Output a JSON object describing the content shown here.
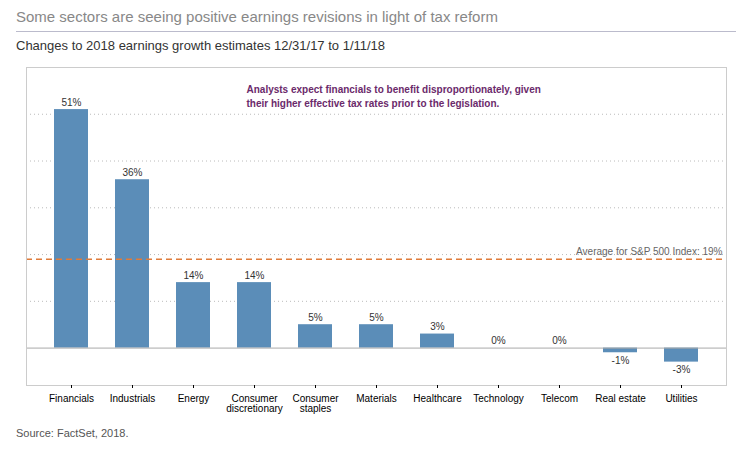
{
  "chart_data": {
    "type": "bar",
    "title": "Some sectors are seeing positive earnings revisions in light of tax reform",
    "subtitle": "Changes to 2018 earnings growth estimates 12/31/17 to 1/11/18",
    "categories": [
      "Financials",
      "Industrials",
      "Energy",
      "Consumer\ndiscretionary",
      "Consumer\nstaples",
      "Materials",
      "Healthcare",
      "Technology",
      "Telecom",
      "Real estate",
      "Utilities"
    ],
    "values": [
      51,
      36,
      14,
      14,
      5,
      5,
      3,
      0,
      0,
      -1,
      -3
    ],
    "value_labels": [
      "51%",
      "36%",
      "14%",
      "14%",
      "5%",
      "5%",
      "3%",
      "0%",
      "0%",
      "-1%",
      "-3%"
    ],
    "data_labels": true,
    "color": "#5b8db8",
    "ylim": [
      -8,
      60
    ],
    "yticks": [
      10,
      20,
      30,
      40,
      50
    ],
    "grid": true,
    "tick_labels": "x",
    "reference_line": {
      "value": 19,
      "label": "Average for S&P 500 Index: 19%",
      "color": "#e07b39"
    },
    "annotation": {
      "text": "Analysts expect financials to benefit disproportionately, given\ntheir higher effective tax rates prior to the legislation.",
      "color": "#6b2a6b"
    },
    "caption": "Source: FactSet, 2018."
  }
}
